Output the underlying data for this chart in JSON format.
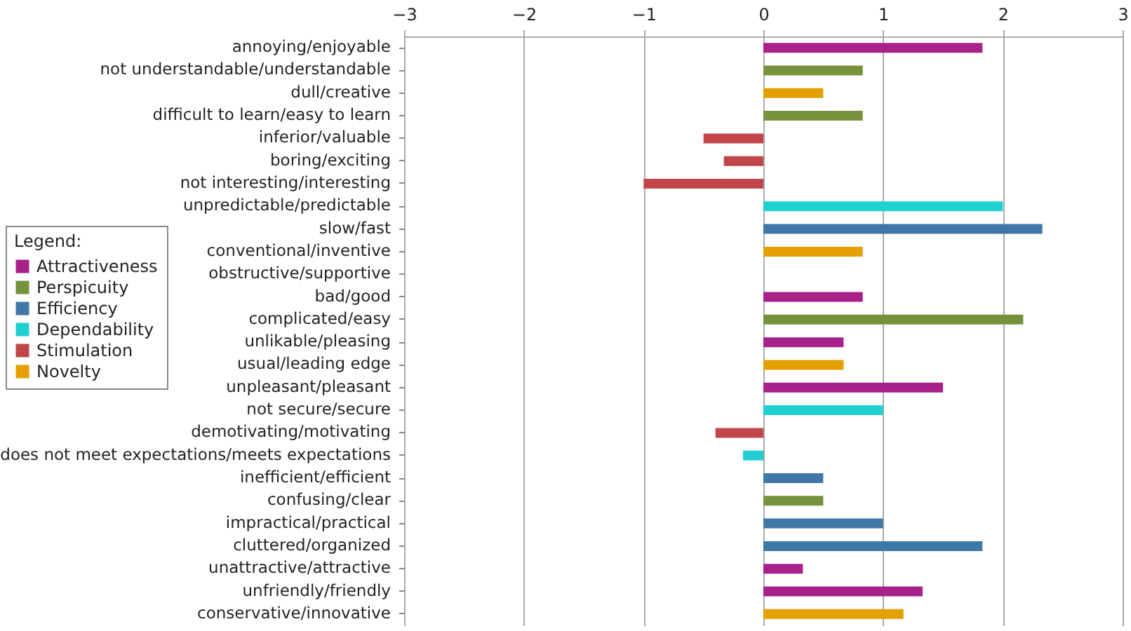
{
  "chart_data": {
    "type": "bar",
    "orientation": "horizontal",
    "legend_title": "Legend:",
    "legend": "left",
    "grid": "x",
    "xlim": [
      -3,
      3
    ],
    "xticks": [
      -3,
      -2,
      -1,
      0,
      1,
      2,
      3
    ],
    "categories": [
      "annoying/enjoyable",
      "not understandable/understandable",
      "dull/creative",
      "difficult to learn/easy to learn",
      "inferior/valuable",
      "boring/exciting",
      "not interesting/interesting",
      "unpredictable/predictable",
      "slow/fast",
      "conventional/inventive",
      "obstructive/supportive",
      "bad/good",
      "complicated/easy",
      "unlikable/pleasing",
      "usual/leading edge",
      "unpleasant/pleasant",
      "not secure/secure",
      "demotivating/motivating",
      "does not meet expectations/meets expectations",
      "inefficient/efficient",
      "confusing/clear",
      "impractical/practical",
      "cluttered/organized",
      "unattractive/attractive",
      "unfriendly/friendly",
      "conservative/innovative"
    ],
    "series": [
      {
        "name": "Attractiveness",
        "color": "#a8208a",
        "values": [
          1.83,
          null,
          null,
          null,
          null,
          null,
          null,
          null,
          null,
          null,
          null,
          0.83,
          null,
          0.67,
          null,
          1.5,
          null,
          null,
          null,
          null,
          null,
          null,
          null,
          0.33,
          1.33,
          null
        ]
      },
      {
        "name": "Perspicuity",
        "color": "#76923c",
        "values": [
          null,
          0.83,
          null,
          0.83,
          null,
          null,
          null,
          null,
          null,
          null,
          null,
          null,
          2.17,
          null,
          null,
          null,
          null,
          null,
          null,
          null,
          0.5,
          null,
          null,
          null,
          null,
          null
        ]
      },
      {
        "name": "Efficiency",
        "color": "#3f77a7",
        "values": [
          null,
          null,
          null,
          null,
          null,
          null,
          null,
          null,
          2.33,
          null,
          null,
          null,
          null,
          null,
          null,
          null,
          null,
          null,
          null,
          0.5,
          null,
          1.0,
          1.83,
          null,
          null,
          null
        ]
      },
      {
        "name": "Dependability",
        "color": "#20d0d0",
        "values": [
          null,
          null,
          null,
          null,
          null,
          null,
          null,
          2.0,
          null,
          null,
          null,
          null,
          null,
          null,
          null,
          null,
          1.0,
          null,
          -0.17,
          null,
          null,
          null,
          null,
          null,
          null,
          null
        ]
      },
      {
        "name": "Stimulation",
        "color": "#c0464a",
        "values": [
          null,
          null,
          null,
          null,
          -0.5,
          -0.33,
          -1.0,
          null,
          null,
          null,
          0,
          null,
          null,
          null,
          null,
          null,
          null,
          -0.4,
          null,
          null,
          null,
          null,
          null,
          null,
          null,
          null
        ]
      },
      {
        "name": "Novelty",
        "color": "#e3a000",
        "values": [
          null,
          null,
          0.5,
          null,
          null,
          null,
          null,
          null,
          null,
          0.83,
          null,
          null,
          null,
          null,
          0.67,
          null,
          null,
          null,
          null,
          null,
          null,
          null,
          null,
          null,
          null,
          1.17
        ]
      }
    ]
  }
}
